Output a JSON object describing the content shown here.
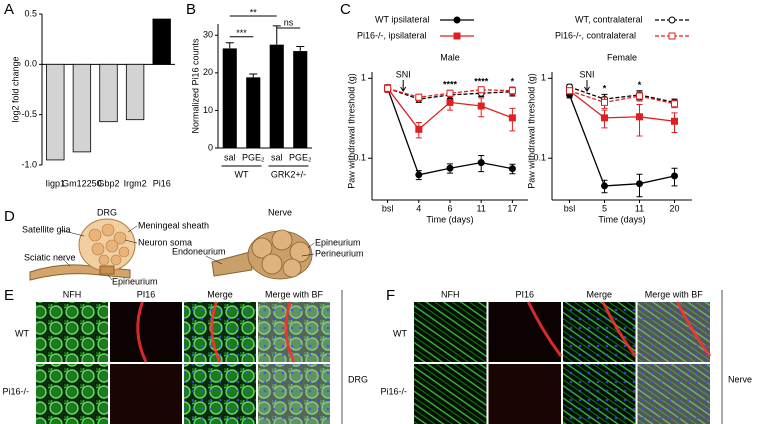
{
  "panel_labels": [
    "A",
    "B",
    "C",
    "D",
    "E",
    "F"
  ],
  "chart_data": [
    {
      "type": "bar",
      "ylabel": "log2 fold change",
      "categories": [
        "Iigp1",
        "Gm12250",
        "Gbp2",
        "Irgm2",
        "Pi16"
      ],
      "values": [
        -0.95,
        -0.87,
        -0.57,
        -0.55,
        0.45
      ],
      "colors": [
        "#d3d3d3",
        "#d3d3d3",
        "#d3d3d3",
        "#d3d3d3",
        "#000000"
      ],
      "category_colors": [
        "#000000",
        "#000000",
        "#000000",
        "#000000",
        "#e02020"
      ],
      "ylim": [
        -1.05,
        0.55
      ],
      "yticks": [
        {
          "value": -1,
          "label": "-1.0"
        },
        {
          "value": -0.5,
          "label": "-0.5"
        },
        {
          "value": 0,
          "label": "0.0"
        },
        {
          "value": 0.5,
          "label": "0.5"
        }
      ]
    },
    {
      "type": "errorbar",
      "ylabel": "Normalized Pi16 counts",
      "categories": [
        "sal",
        "PGE₂",
        "sal",
        "PGE₂"
      ],
      "groups": [
        "WT",
        "GRK2+/-"
      ],
      "values": [
        26.5,
        18.8,
        27.5,
        25.8
      ],
      "errors": [
        1.5,
        0.9,
        5.0,
        1.2
      ],
      "color": "#000000",
      "ylim": [
        0,
        33
      ],
      "yticks": [
        0,
        10,
        20,
        30
      ],
      "annotations": [
        {
          "text": "***",
          "from": 0,
          "to": 1
        },
        {
          "text": "**",
          "from": 0,
          "to": 2
        },
        {
          "text": "ns",
          "from": 2,
          "to": 3
        }
      ]
    },
    {
      "type": "line",
      "title": "Male",
      "xlabel": "Time (days)",
      "ylabel": "Paw withdrawal threshold (g)",
      "categories": [
        "bsl",
        "4",
        "6",
        "11",
        "17"
      ],
      "log_y": true,
      "ylim": [
        0.03,
        1.2
      ],
      "yticks": [
        0.1,
        1
      ],
      "event_label": "SNI",
      "annotations": [
        {
          "text": "****",
          "category": 2
        },
        {
          "text": "****",
          "category": 3
        },
        {
          "text": "*",
          "category": 4
        }
      ],
      "series": [
        {
          "name": "WT  ipsilateral",
          "color": "#000000",
          "dash": false,
          "marker": "circle",
          "filled": true,
          "values": [
            0.75,
            0.062,
            0.075,
            0.088,
            0.074
          ],
          "errors": [
            0.06,
            0.008,
            0.01,
            0.02,
            0.01
          ]
        },
        {
          "name": "Pi16-/-, ipsilateral",
          "color": "#e02020",
          "dash": false,
          "marker": "square",
          "filled": true,
          "values": [
            0.75,
            0.23,
            0.5,
            0.45,
            0.32
          ],
          "errors": [
            0.08,
            0.05,
            0.1,
            0.12,
            0.1
          ]
        },
        {
          "name": "WT, contralateral",
          "color": "#000000",
          "dash": true,
          "marker": "circle",
          "filled": false,
          "values": [
            0.75,
            0.55,
            0.62,
            0.65,
            0.68
          ],
          "errors": [
            0.08,
            0.05,
            0.06,
            0.06,
            0.08
          ]
        },
        {
          "name": "Pi16-/-, contralateral",
          "color": "#e02020",
          "dash": true,
          "marker": "square",
          "filled": false,
          "values": [
            0.75,
            0.58,
            0.65,
            0.72,
            0.7
          ],
          "errors": [
            0.08,
            0.05,
            0.06,
            0.06,
            0.08
          ]
        }
      ]
    },
    {
      "type": "line",
      "title": "Female",
      "xlabel": "Time (days)",
      "ylabel": "Paw withdrawal threshold (g)",
      "categories": [
        "bsl",
        "5",
        "11",
        "20"
      ],
      "log_y": true,
      "ylim": [
        0.03,
        1.2
      ],
      "yticks": [
        0.1,
        1
      ],
      "event_label": "SNI",
      "annotations": [
        {
          "text": "*",
          "category": 1
        },
        {
          "text": "*",
          "category": 2
        }
      ],
      "series": [
        {
          "color": "#000000",
          "dash": false,
          "marker": "circle",
          "filled": true,
          "values": [
            0.62,
            0.045,
            0.048,
            0.06
          ],
          "errors": [
            0.05,
            0.008,
            0.015,
            0.015
          ]
        },
        {
          "color": "#e02020",
          "dash": false,
          "marker": "square",
          "filled": true,
          "values": [
            0.7,
            0.32,
            0.33,
            0.29
          ],
          "errors": [
            0.06,
            0.08,
            0.14,
            0.08
          ]
        },
        {
          "color": "#000000",
          "dash": true,
          "marker": "circle",
          "filled": false,
          "values": [
            0.78,
            0.55,
            0.62,
            0.5
          ],
          "errors": [
            0.06,
            0.08,
            0.08,
            0.05
          ]
        },
        {
          "color": "#e02020",
          "dash": true,
          "marker": "square",
          "filled": false,
          "values": [
            0.7,
            0.5,
            0.6,
            0.48
          ],
          "errors": [
            0.06,
            0.08,
            0.08,
            0.05
          ]
        }
      ]
    }
  ],
  "diagram": {
    "drg": {
      "title": "DRG",
      "labels": [
        "Satellite glia",
        "Meningeal sheath",
        "Neuron soma",
        "Sciatic nerve",
        "Epineurium"
      ]
    },
    "nerve": {
      "title": "Nerve",
      "labels": [
        "Endoneurium",
        "Epineurium",
        "Perineurium"
      ]
    }
  },
  "micrographs": {
    "columns": [
      "NFH",
      "PI16",
      "Merge",
      "Merge with BF"
    ],
    "rows": [
      "WT",
      "Pi16-/-"
    ],
    "E": {
      "tissue": "DRG"
    },
    "F": {
      "tissue": "Nerve"
    }
  }
}
